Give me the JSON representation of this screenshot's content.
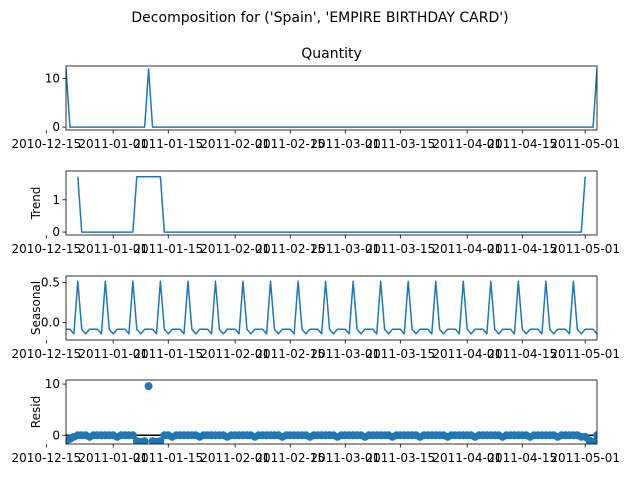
{
  "figure": {
    "suptitle": "Decomposition for ('Spain', 'EMPIRE BIRTHDAY CARD')",
    "line_color": "#1f77b4"
  },
  "chart_data": [
    {
      "type": "line",
      "title": "Quantity",
      "ylabel": "",
      "ylim": [
        -0.6,
        12.6
      ],
      "yticks": [
        0,
        10
      ],
      "x_start": "2010-12-20",
      "x_end": "2011-05-04",
      "xticks": [
        "2010-12-15",
        "2011-01-01",
        "2011-01-15",
        "2011-02-01",
        "2011-02-15",
        "2011-03-01",
        "2011-03-15",
        "2011-04-01",
        "2011-04-15",
        "2011-05-01"
      ],
      "points": [
        [
          "2010-12-20",
          12
        ],
        [
          "2010-12-21",
          0
        ],
        [
          "2011-01-09",
          0
        ],
        [
          "2011-01-10",
          12
        ],
        [
          "2011-01-11",
          0
        ],
        [
          "2011-05-03",
          0
        ],
        [
          "2011-05-04",
          12
        ]
      ]
    },
    {
      "type": "line",
      "title": "",
      "ylabel": "Trend",
      "ylim": [
        -0.09,
        1.89
      ],
      "yticks": [
        0,
        1
      ],
      "x_start": "2010-12-20",
      "x_end": "2011-05-04",
      "xticks": [
        "2010-12-15",
        "2011-01-01",
        "2011-01-15",
        "2011-02-01",
        "2011-02-15",
        "2011-03-01",
        "2011-03-15",
        "2011-04-01",
        "2011-04-15",
        "2011-05-01"
      ],
      "points": [
        [
          "2010-12-23",
          1.714
        ],
        [
          "2010-12-24",
          0
        ],
        [
          "2011-01-06",
          0
        ],
        [
          "2011-01-07",
          1.714
        ],
        [
          "2011-01-13",
          1.714
        ],
        [
          "2011-01-14",
          0
        ],
        [
          "2011-04-30",
          0
        ],
        [
          "2011-05-01",
          1.714
        ]
      ]
    },
    {
      "type": "line",
      "title": "",
      "ylabel": "Seasonal",
      "ylim": [
        -0.22,
        0.58
      ],
      "yticks": [
        0.0,
        0.5
      ],
      "ytick_labels": [
        "0.0",
        "0.5"
      ],
      "x_start": "2010-12-20",
      "x_end": "2011-05-04",
      "xticks": [
        "2010-12-15",
        "2011-01-01",
        "2011-01-15",
        "2011-02-01",
        "2011-02-15",
        "2011-03-01",
        "2011-03-15",
        "2011-04-01",
        "2011-04-15",
        "2011-05-01"
      ],
      "seasonal_pattern": [
        -0.086,
        -0.086,
        -0.143,
        0.514,
        -0.086,
        -0.143,
        -0.086
      ]
    },
    {
      "type": "scatter",
      "title": "",
      "ylabel": "Resid",
      "ylim": [
        -1.7,
        10.8
      ],
      "yticks": [
        0,
        10
      ],
      "baseline": 0,
      "x_start": "2010-12-20",
      "x_end": "2011-05-04",
      "xticks": [
        "2010-12-15",
        "2011-01-01",
        "2011-01-15",
        "2011-02-01",
        "2011-02-15",
        "2011-03-01",
        "2011-03-15",
        "2011-04-01",
        "2011-04-15",
        "2011-05-01"
      ],
      "default_resid": 0.0,
      "special_points": [
        [
          "2010-12-20",
          -1.15
        ],
        [
          "2010-12-21",
          -0.7
        ],
        [
          "2010-12-22",
          -0.3
        ],
        [
          "2010-12-26",
          -0.3
        ],
        [
          "2011-01-02",
          -0.3
        ],
        [
          "2011-01-07",
          -1.15
        ],
        [
          "2011-01-08",
          -1.25
        ],
        [
          "2011-01-09",
          -1.15
        ],
        [
          "2011-01-10",
          9.6
        ],
        [
          "2011-01-11",
          -1.15
        ],
        [
          "2011-01-12",
          -1.25
        ],
        [
          "2011-01-13",
          -1.15
        ],
        [
          "2011-01-16",
          -0.3
        ],
        [
          "2011-01-23",
          -0.3
        ],
        [
          "2011-01-30",
          -0.3
        ],
        [
          "2011-02-06",
          -0.3
        ],
        [
          "2011-02-13",
          -0.3
        ],
        [
          "2011-02-20",
          -0.3
        ],
        [
          "2011-02-27",
          -0.3
        ],
        [
          "2011-03-06",
          -0.3
        ],
        [
          "2011-03-13",
          -0.3
        ],
        [
          "2011-03-20",
          -0.3
        ],
        [
          "2011-03-27",
          -0.3
        ],
        [
          "2011-04-03",
          -0.3
        ],
        [
          "2011-04-10",
          -0.3
        ],
        [
          "2011-04-17",
          -0.3
        ],
        [
          "2011-04-24",
          -0.3
        ],
        [
          "2011-04-30",
          -0.3
        ],
        [
          "2011-05-01",
          -0.3
        ],
        [
          "2011-05-02",
          -1.0
        ],
        [
          "2011-05-03",
          -1.25
        ]
      ]
    }
  ]
}
